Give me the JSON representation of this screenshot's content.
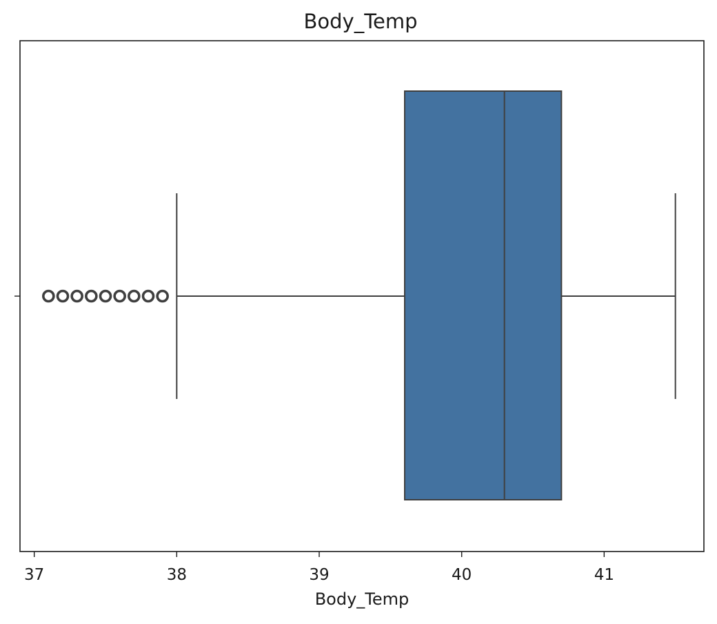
{
  "chart_data": {
    "type": "boxplot",
    "title": "Body_Temp",
    "xlabel": "Body_Temp",
    "ylabel": "",
    "orientation": "horizontal",
    "xlim": [
      36.9,
      41.7
    ],
    "xticks": [
      37,
      38,
      39,
      40,
      41
    ],
    "grid": false,
    "box": {
      "whisker_low": 38.0,
      "q1": 39.6,
      "median": 40.3,
      "q3": 40.7,
      "whisker_high": 41.5
    },
    "outliers": [
      37.1,
      37.2,
      37.3,
      37.4,
      37.5,
      37.6,
      37.7,
      37.8,
      37.9
    ],
    "colors": {
      "box_fill": "#4372a0",
      "line": "#3f3f3f",
      "frame": "#1a1a1a"
    }
  }
}
